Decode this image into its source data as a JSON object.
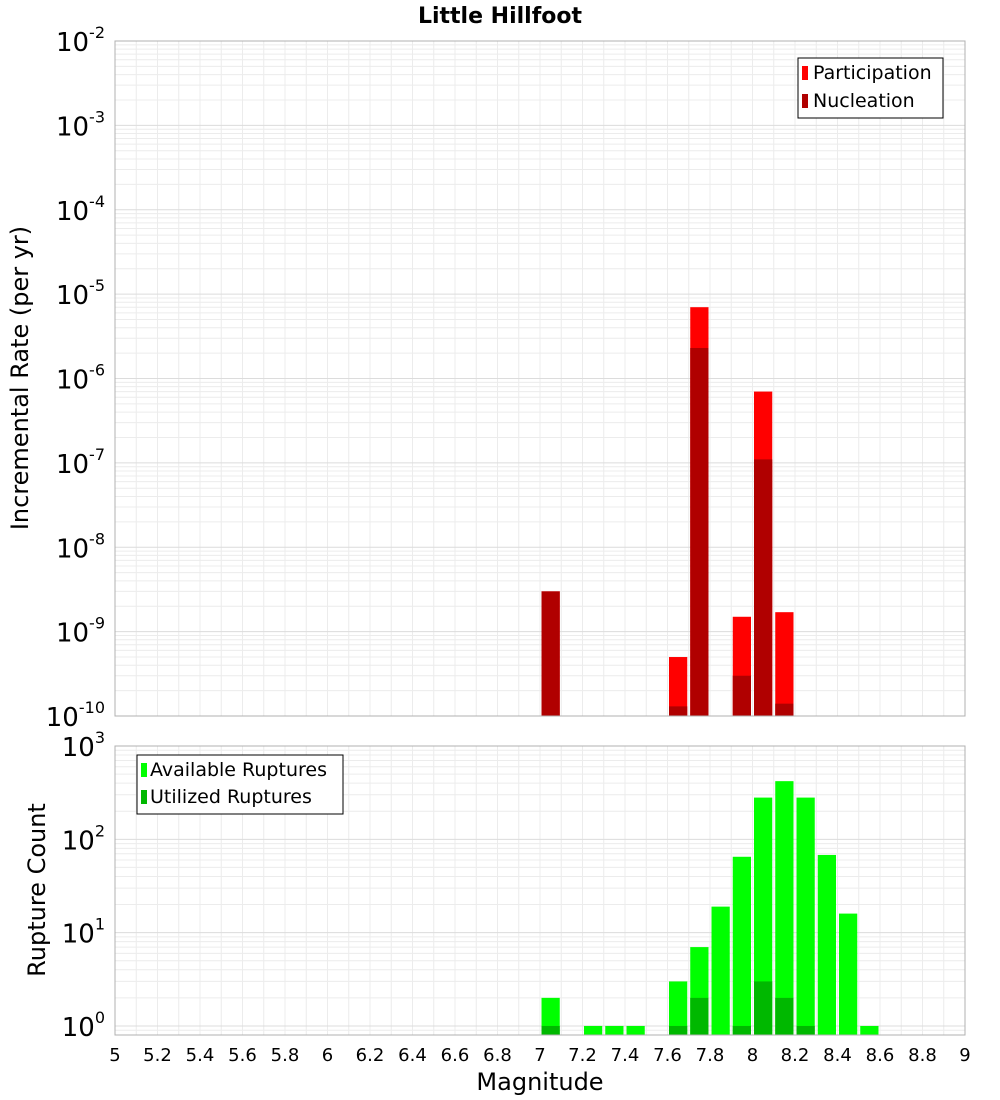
{
  "chart_data": {
    "title": "Little Hillfoot",
    "xlabel": "Magnitude",
    "xlim": [
      5,
      9
    ],
    "xticks": [
      "5",
      "5.2",
      "5.4",
      "5.6",
      "5.8",
      "6",
      "6.2",
      "6.4",
      "6.6",
      "6.8",
      "7",
      "7.2",
      "7.4",
      "7.6",
      "7.8",
      "8",
      "8.2",
      "8.4",
      "8.6",
      "8.8",
      "9"
    ],
    "grid": true,
    "panels": [
      {
        "type": "bar",
        "yscale": "log",
        "ylabel": "Incremental Rate (per yr)",
        "ylim": [
          1e-10,
          0.01
        ],
        "yticks": [
          {
            "base": "10",
            "exp": "-10"
          },
          {
            "base": "10",
            "exp": "-9"
          },
          {
            "base": "10",
            "exp": "-8"
          },
          {
            "base": "10",
            "exp": "-7"
          },
          {
            "base": "10",
            "exp": "-6"
          },
          {
            "base": "10",
            "exp": "-5"
          },
          {
            "base": "10",
            "exp": "-4"
          },
          {
            "base": "10",
            "exp": "-3"
          },
          {
            "base": "10",
            "exp": "-2"
          }
        ],
        "legend_position": "top-right",
        "series": [
          {
            "name": "Participation",
            "color": "#ff0000",
            "x": [
              7.05,
              7.65,
              7.75,
              7.95,
              8.05,
              8.15
            ],
            "values": [
              3e-09,
              5e-10,
              7e-06,
              1.5e-09,
              7e-07,
              1.7e-09
            ]
          },
          {
            "name": "Nucleation",
            "color": "#b00000",
            "x": [
              7.05,
              7.65,
              7.75,
              7.95,
              8.05,
              8.15
            ],
            "values": [
              3e-09,
              1.3e-10,
              2.3e-06,
              3e-10,
              1.1e-07,
              1.4e-10
            ]
          }
        ]
      },
      {
        "type": "bar",
        "yscale": "log",
        "ylabel": "Rupture Count",
        "ylim": [
          0.8,
          1000
        ],
        "yticks": [
          {
            "base": "10",
            "exp": "0"
          },
          {
            "base": "10",
            "exp": "1"
          },
          {
            "base": "10",
            "exp": "2"
          },
          {
            "base": "10",
            "exp": "3"
          }
        ],
        "legend_position": "top-left",
        "series": [
          {
            "name": "Available Ruptures",
            "color": "#00ff00",
            "x": [
              7.05,
              7.25,
              7.35,
              7.45,
              7.65,
              7.75,
              7.85,
              7.95,
              8.05,
              8.15,
              8.25,
              8.35,
              8.45,
              8.55
            ],
            "values": [
              2,
              1,
              1,
              1,
              3,
              7,
              19,
              65,
              280,
              420,
              280,
              68,
              16,
              1
            ]
          },
          {
            "name": "Utilized Ruptures",
            "color": "#00b800",
            "x": [
              7.05,
              7.65,
              7.75,
              7.95,
              8.05,
              8.15,
              8.25
            ],
            "values": [
              1,
              1,
              2,
              1,
              3,
              2,
              1
            ]
          }
        ]
      }
    ]
  }
}
